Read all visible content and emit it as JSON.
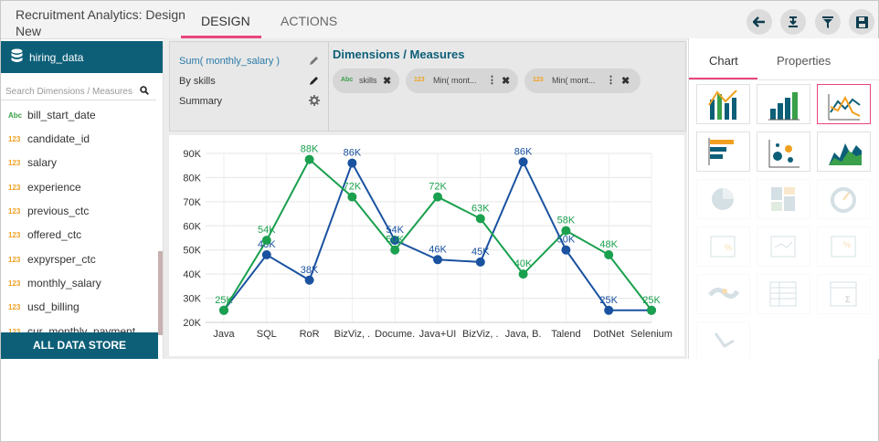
{
  "app": {
    "title": "Recruitment Analytics: Design New"
  },
  "tabs": [
    {
      "label": "DESIGN"
    },
    {
      "label": "ACTIONS"
    }
  ],
  "toolbar": {
    "icons": [
      "back-arrow-icon",
      "export-icon",
      "filter-icon",
      "save-icon"
    ]
  },
  "sidebar": {
    "dataset": "hiring_data",
    "search_placeholder": "Search Dimensions / Measures",
    "fields": [
      {
        "type": "Abc",
        "name": "bill_start_date"
      },
      {
        "type": "123",
        "name": "candidate_id"
      },
      {
        "type": "123",
        "name": "salary"
      },
      {
        "type": "123",
        "name": "experience"
      },
      {
        "type": "123",
        "name": "previous_ctc"
      },
      {
        "type": "123",
        "name": "offered_ctc"
      },
      {
        "type": "123",
        "name": "expyrsper_ctc"
      },
      {
        "type": "123",
        "name": "monthly_salary"
      },
      {
        "type": "123",
        "name": "usd_billing"
      },
      {
        "type": "123",
        "name": "cur_monthly_payment"
      }
    ],
    "all_data_store": "ALL DATA STORE"
  },
  "config": {
    "items": [
      {
        "label": "Sum( monthly_salary )"
      },
      {
        "label": "By skills"
      },
      {
        "label": "Summary"
      }
    ],
    "dm_title": "Dimensions / Measures",
    "chips": [
      {
        "type": "Abc",
        "label": "skills"
      },
      {
        "type": "123",
        "label": "Min( mont..."
      },
      {
        "type": "123",
        "label": "Min( mont..."
      }
    ]
  },
  "chart_data": {
    "type": "line",
    "categories": [
      "Java",
      "SQL",
      "RoR",
      "BizViz, .",
      "Docume.",
      "Java+UI",
      "BizViz, .",
      "Java, B.",
      "Talend",
      "DotNet",
      "Selenium"
    ],
    "ylim": [
      20000,
      90000
    ],
    "yticks": [
      "20K",
      "30K",
      "40K",
      "50K",
      "60K",
      "70K",
      "80K",
      "90K"
    ],
    "grid": true,
    "series": [
      {
        "color": "#1a52a0",
        "values": [
          25000,
          48000,
          37500,
          86000,
          54000,
          46000,
          45000,
          86500,
          50000,
          25000,
          25000
        ],
        "labels": [
          "",
          "48K",
          "38K",
          "86K",
          "54K",
          "46K",
          "45K",
          "86K",
          "50K",
          "25K",
          ""
        ]
      },
      {
        "color": "#1aa04e",
        "values": [
          25000,
          54000,
          87500,
          72000,
          50000,
          72000,
          63000,
          40000,
          58000,
          48000,
          25000
        ],
        "labels": [
          "25K",
          "54K",
          "88K",
          "72K",
          "50K",
          "72K",
          "63K",
          "40K",
          "58K",
          "48K",
          "25K"
        ]
      }
    ]
  },
  "right_panel": {
    "tabs": [
      {
        "label": "Chart"
      },
      {
        "label": "Properties"
      }
    ],
    "chart_types": [
      "bar-line-icon",
      "column-chart-icon",
      "line-chart-icon",
      "horizontal-bar-icon",
      "bubble-chart-icon",
      "area-chart-icon",
      "pie-chart-icon",
      "treemap-icon",
      "gauge-icon",
      "kpi-icon",
      "trend-kpi-icon",
      "percent-kpi-icon",
      "map-icon",
      "grid-table-icon",
      "summary-table-icon",
      "tree-icon"
    ]
  }
}
